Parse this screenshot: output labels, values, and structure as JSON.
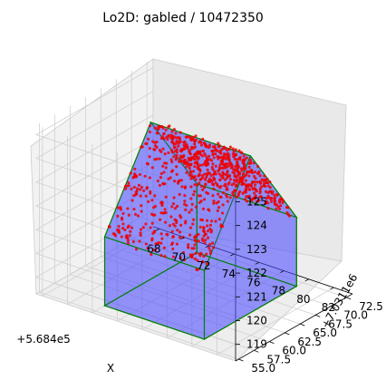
{
  "chart_data": {
    "type": "scatter3d",
    "title": "Lo2D: gabled / 10472350",
    "xlabel": "X",
    "ylabel": "",
    "zlabel": "",
    "x_offset_label": "+5.684e5",
    "y_offset_label": "+7.0311e6",
    "x_ticks": [
      "68",
      "70",
      "72",
      "74",
      "76",
      "78",
      "80",
      "82"
    ],
    "y_ticks": [
      "55.0",
      "57.5",
      "60.0",
      "62.5",
      "65.0",
      "67.5",
      "70.0",
      "72.5"
    ],
    "z_ticks": [
      "119",
      "120",
      "121",
      "122",
      "123",
      "124",
      "125"
    ],
    "xlim": [
      67.5,
      83.5
    ],
    "ylim": [
      54.5,
      73.5
    ],
    "zlim": [
      118.3,
      125.4
    ],
    "grid": true,
    "colors": {
      "points": "#ff0000",
      "points_edge": "#cc0000",
      "faces": "#4a4aff",
      "edges": "#008000",
      "pane": "#f2f2f2",
      "pane_dark": "#e6e6e6"
    },
    "building": {
      "roof_type": "gabled",
      "x_range": [
        72.0,
        80.0
      ],
      "y_range": [
        56.5,
        71.5
      ],
      "eave_z": 121.2,
      "ridge_z": 124.9,
      "base_z": 118.3
    }
  }
}
